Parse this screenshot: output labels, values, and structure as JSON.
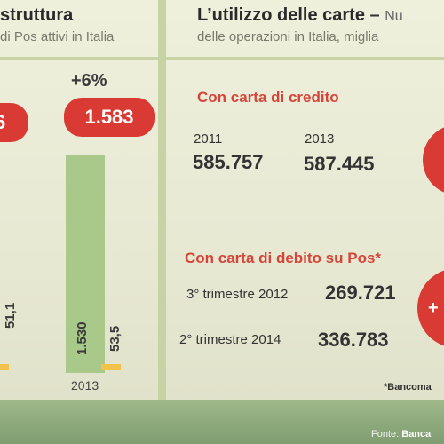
{
  "left": {
    "title": "struttura",
    "subtitle": "di Pos attivi in Italia",
    "growth_label": "+6%",
    "highlight_value": "1.583",
    "cut_highlight": "6",
    "bar_main_value": "1.530",
    "bar_small_value": "53,5",
    "cut_bar_value": "51,1",
    "year": "2013"
  },
  "right": {
    "title": "L’utilizzo delle carte",
    "title_dash": "–",
    "title_tail": "Nu",
    "subtitle": "delle operazioni in Italia, miglia",
    "credit": {
      "heading": "Con carta di credito",
      "year_a": "2011",
      "year_b": "2013",
      "value_a": "585.757",
      "value_b": "587.445"
    },
    "debit": {
      "heading": "Con carta di debito su Pos*",
      "row1_label": "3° trimestre 2012",
      "row1_value": "269.721",
      "row2_label": "2° trimestre 2014",
      "row2_value": "336.783",
      "badge": "+"
    },
    "footnote": "*Bancoma"
  },
  "footer": {
    "source_label": "Fonte:",
    "source_name": "Banca"
  },
  "colors": {
    "accent_red": "#d93a33",
    "bar_green": "#a9c98a",
    "bar_yellow": "#f3c24a",
    "heading_red": "#d6453a"
  }
}
